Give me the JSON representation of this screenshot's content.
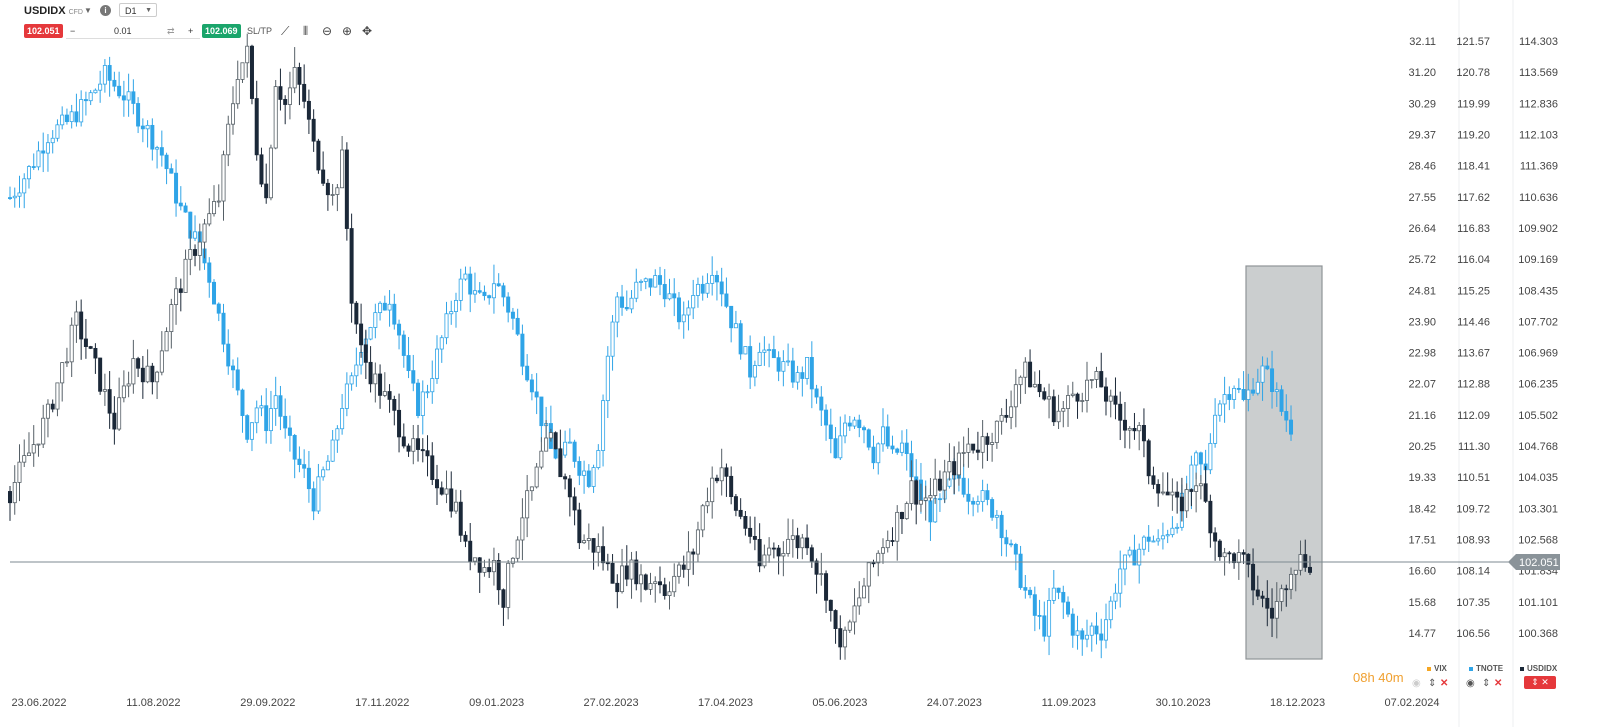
{
  "toolbar": {
    "symbol": "USDIDX",
    "symbol_type": "CFD",
    "timeframe": "D1",
    "sell_price": "102.051",
    "volume": "0.01",
    "buy_price": "102.069",
    "sltp_label": "SL/TP",
    "minus": "−",
    "plus": "+"
  },
  "chart_data": {
    "type": "candlestick",
    "instruments": [
      {
        "name": "VIX",
        "color": "#f5a623"
      },
      {
        "name": "TNOTE",
        "color": "#2fa4e7"
      },
      {
        "name": "USDIDX",
        "color": "#1b2838"
      }
    ],
    "x_labels": [
      "23.06.2022",
      "11.08.2022",
      "29.09.2022",
      "17.11.2022",
      "09.01.2023",
      "27.02.2023",
      "17.04.2023",
      "05.06.2023",
      "24.07.2023",
      "11.09.2023",
      "30.10.2023",
      "18.12.2023",
      "07.02.2024"
    ],
    "axis_vix": [
      "32.11",
      "31.20",
      "30.29",
      "29.37",
      "28.46",
      "27.55",
      "26.64",
      "25.72",
      "24.81",
      "23.90",
      "22.98",
      "22.07",
      "21.16",
      "20.25",
      "19.33",
      "18.42",
      "17.51",
      "16.60",
      "15.68",
      "14.77"
    ],
    "axis_tnote": [
      "121.57",
      "120.78",
      "119.99",
      "119.20",
      "118.41",
      "117.62",
      "116.83",
      "116.04",
      "115.25",
      "114.46",
      "113.67",
      "112.88",
      "112.09",
      "111.30",
      "110.51",
      "109.72",
      "108.93",
      "108.14",
      "107.35",
      "106.56"
    ],
    "axis_usdidx": [
      "114.303",
      "113.569",
      "112.836",
      "112.103",
      "111.369",
      "110.636",
      "109.902",
      "109.169",
      "108.435",
      "107.702",
      "106.969",
      "106.235",
      "105.502",
      "104.768",
      "104.035",
      "103.301",
      "102.568",
      "101.834",
      "101.101",
      "100.368"
    ],
    "usdidx_range": [
      100.368,
      114.303
    ],
    "current_price": "102.051",
    "usdidx_path": [
      [
        0,
        103.7
      ],
      [
        2,
        104.6
      ],
      [
        4,
        105.5
      ],
      [
        6,
        107.0
      ],
      [
        7,
        107.7
      ],
      [
        9,
        106.6
      ],
      [
        11,
        105.3
      ],
      [
        13,
        106.8
      ],
      [
        15,
        106.3
      ],
      [
        17,
        108.0
      ],
      [
        19,
        109.2
      ],
      [
        20,
        109.7
      ],
      [
        22,
        110.6
      ],
      [
        23,
        112.2
      ],
      [
        24,
        113.6
      ],
      [
        25,
        114.0
      ],
      [
        26,
        111.8
      ],
      [
        27,
        110.6
      ],
      [
        28,
        113.4
      ],
      [
        29,
        112.8
      ],
      [
        30,
        113.5
      ],
      [
        31,
        112.9
      ],
      [
        32,
        111.8
      ],
      [
        34,
        110.6
      ],
      [
        35,
        111.5
      ],
      [
        36,
        108.3
      ],
      [
        37,
        107.0
      ],
      [
        38,
        106.5
      ],
      [
        40,
        105.7
      ],
      [
        42,
        104.8
      ],
      [
        44,
        104.3
      ],
      [
        45,
        104.0
      ],
      [
        46,
        103.7
      ],
      [
        47,
        103.3
      ],
      [
        48,
        102.3
      ],
      [
        49,
        102.2
      ],
      [
        50,
        101.9
      ],
      [
        51,
        102.0
      ],
      [
        52,
        101.2
      ],
      [
        53,
        102.3
      ],
      [
        54,
        103.2
      ],
      [
        55,
        103.7
      ],
      [
        56,
        104.5
      ],
      [
        57,
        104.9
      ],
      [
        58,
        104.2
      ],
      [
        59,
        103.7
      ],
      [
        60,
        102.6
      ],
      [
        61,
        102.5
      ],
      [
        62,
        102.3
      ],
      [
        63,
        101.9
      ],
      [
        64,
        101.6
      ],
      [
        65,
        101.9
      ],
      [
        66,
        101.8
      ],
      [
        67,
        101.5
      ],
      [
        68,
        101.7
      ],
      [
        69,
        101.4
      ],
      [
        70,
        101.7
      ],
      [
        71,
        101.9
      ],
      [
        72,
        102.3
      ],
      [
        73,
        103.3
      ],
      [
        74,
        104.0
      ],
      [
        75,
        104.3
      ],
      [
        76,
        103.5
      ],
      [
        77,
        103.1
      ],
      [
        78,
        102.7
      ],
      [
        79,
        101.9
      ],
      [
        80,
        102.4
      ],
      [
        81,
        102.3
      ],
      [
        82,
        102.6
      ],
      [
        83,
        102.5
      ],
      [
        84,
        102.6
      ],
      [
        85,
        101.9
      ],
      [
        86,
        101.4
      ],
      [
        87,
        100.3
      ],
      [
        88,
        100.2
      ],
      [
        89,
        100.9
      ],
      [
        90,
        101.5
      ],
      [
        91,
        102.0
      ],
      [
        92,
        102.5
      ],
      [
        93,
        102.8
      ],
      [
        94,
        103.3
      ],
      [
        95,
        103.8
      ],
      [
        96,
        103.5
      ],
      [
        97,
        103.6
      ],
      [
        98,
        103.9
      ],
      [
        99,
        104.2
      ],
      [
        100,
        104.4
      ],
      [
        101,
        104.8
      ],
      [
        102,
        104.8
      ],
      [
        103,
        105.0
      ],
      [
        104,
        105.2
      ],
      [
        105,
        105.5
      ],
      [
        106,
        106.3
      ],
      [
        107,
        106.5
      ],
      [
        108,
        106.2
      ],
      [
        109,
        105.9
      ],
      [
        110,
        105.6
      ],
      [
        111,
        105.6
      ],
      [
        112,
        106.0
      ],
      [
        113,
        106.1
      ],
      [
        114,
        106.3
      ],
      [
        115,
        106.2
      ],
      [
        116,
        105.7
      ],
      [
        117,
        105.4
      ],
      [
        118,
        105.3
      ],
      [
        119,
        105.1
      ],
      [
        120,
        104.2
      ],
      [
        121,
        103.9
      ],
      [
        122,
        103.6
      ],
      [
        123,
        103.3
      ],
      [
        124,
        103.6
      ],
      [
        125,
        104.0
      ],
      [
        126,
        103.4
      ],
      [
        127,
        102.6
      ],
      [
        128,
        102.1
      ],
      [
        129,
        102.2
      ],
      [
        130,
        102.0
      ],
      [
        131,
        101.5
      ],
      [
        132,
        101.1
      ],
      [
        133,
        100.8
      ],
      [
        134,
        101.3
      ],
      [
        135,
        102.0
      ],
      [
        136,
        102.1
      ],
      [
        137,
        102.05
      ]
    ],
    "tnote_path": [
      [
        0,
        117.6
      ],
      [
        2,
        118.3
      ],
      [
        4,
        119.2
      ],
      [
        6,
        119.5
      ],
      [
        8,
        120.0
      ],
      [
        10,
        120.7
      ],
      [
        12,
        120.2
      ],
      [
        14,
        119.5
      ],
      [
        16,
        118.7
      ],
      [
        18,
        117.3
      ],
      [
        19,
        116.8
      ],
      [
        20,
        116.3
      ],
      [
        21,
        115.6
      ],
      [
        22,
        114.6
      ],
      [
        23,
        113.6
      ],
      [
        24,
        112.6
      ],
      [
        25,
        111.7
      ],
      [
        26,
        112.3
      ],
      [
        27,
        111.9
      ],
      [
        28,
        112.6
      ],
      [
        29,
        111.6
      ],
      [
        30,
        111.0
      ],
      [
        31,
        110.6
      ],
      [
        32,
        109.9
      ],
      [
        33,
        110.6
      ],
      [
        34,
        111.2
      ],
      [
        35,
        112.4
      ],
      [
        36,
        112.9
      ],
      [
        37,
        113.9
      ],
      [
        38,
        114.4
      ],
      [
        39,
        114.7
      ],
      [
        40,
        115.1
      ],
      [
        41,
        114.2
      ],
      [
        42,
        113.0
      ],
      [
        43,
        112.3
      ],
      [
        44,
        112.8
      ],
      [
        45,
        113.6
      ],
      [
        46,
        114.4
      ],
      [
        47,
        115.2
      ],
      [
        48,
        115.6
      ],
      [
        49,
        115.1
      ],
      [
        50,
        114.9
      ],
      [
        51,
        115.5
      ],
      [
        52,
        115.1
      ],
      [
        53,
        114.5
      ],
      [
        54,
        113.6
      ],
      [
        55,
        112.9
      ],
      [
        56,
        112.0
      ],
      [
        57,
        111.2
      ],
      [
        58,
        111.0
      ],
      [
        59,
        111.3
      ],
      [
        60,
        110.8
      ],
      [
        61,
        110.5
      ],
      [
        62,
        111.4
      ],
      [
        63,
        113.6
      ],
      [
        64,
        115.1
      ],
      [
        65,
        114.8
      ],
      [
        66,
        115.3
      ],
      [
        67,
        115.4
      ],
      [
        68,
        115.5
      ],
      [
        69,
        115.3
      ],
      [
        70,
        114.8
      ],
      [
        71,
        114.4
      ],
      [
        72,
        115.3
      ],
      [
        73,
        115.4
      ],
      [
        74,
        115.9
      ],
      [
        75,
        115.3
      ],
      [
        76,
        114.5
      ],
      [
        77,
        113.9
      ],
      [
        78,
        113.2
      ],
      [
        79,
        113.9
      ],
      [
        80,
        113.5
      ],
      [
        81,
        113.4
      ],
      [
        82,
        113.2
      ],
      [
        83,
        113.0
      ],
      [
        84,
        113.3
      ],
      [
        85,
        112.4
      ],
      [
        86,
        111.8
      ],
      [
        87,
        110.9
      ],
      [
        88,
        111.9
      ],
      [
        89,
        112.1
      ],
      [
        90,
        111.8
      ],
      [
        91,
        111.1
      ],
      [
        92,
        111.6
      ],
      [
        93,
        111.0
      ],
      [
        94,
        111.3
      ],
      [
        95,
        110.6
      ],
      [
        96,
        110.0
      ],
      [
        97,
        109.6
      ],
      [
        98,
        109.8
      ],
      [
        99,
        110.3
      ],
      [
        100,
        110.5
      ],
      [
        101,
        110.1
      ],
      [
        102,
        110.1
      ],
      [
        103,
        109.8
      ],
      [
        104,
        109.6
      ],
      [
        105,
        108.9
      ],
      [
        106,
        108.3
      ],
      [
        107,
        107.6
      ],
      [
        108,
        107.0
      ],
      [
        109,
        106.7
      ],
      [
        110,
        107.6
      ],
      [
        111,
        107.3
      ],
      [
        112,
        106.7
      ],
      [
        113,
        106.3
      ],
      [
        114,
        106.7
      ],
      [
        115,
        106.6
      ],
      [
        116,
        107.3
      ],
      [
        117,
        108.2
      ],
      [
        118,
        108.4
      ],
      [
        119,
        108.7
      ],
      [
        120,
        109.0
      ],
      [
        121,
        108.8
      ],
      [
        122,
        109.2
      ],
      [
        123,
        109.5
      ],
      [
        124,
        110.2
      ],
      [
        125,
        110.9
      ],
      [
        126,
        110.6
      ],
      [
        127,
        112.3
      ],
      [
        128,
        112.6
      ],
      [
        129,
        112.9
      ],
      [
        130,
        112.4
      ],
      [
        131,
        112.9
      ],
      [
        132,
        113.2
      ],
      [
        133,
        112.9
      ],
      [
        134,
        112.2
      ],
      [
        135,
        111.8
      ]
    ],
    "highlight": {
      "from_index": 127,
      "to_index": 137
    },
    "countdown": "08h 40m"
  }
}
